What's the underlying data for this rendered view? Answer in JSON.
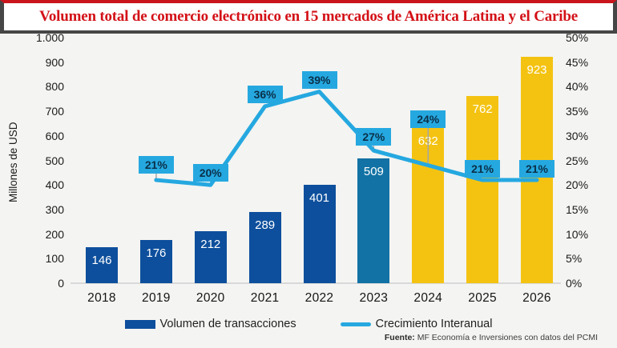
{
  "header": {
    "title": "Volumen total de comercio electrónico en 15 mercados de América Latina y el Caribe"
  },
  "chart_data": {
    "type": "bar",
    "title": "Volumen total de comercio electrónico en 15 mercados de América Latina y el Caribe",
    "categories": [
      "2018",
      "2019",
      "2020",
      "2021",
      "2022",
      "2023",
      "2024",
      "2025",
      "2026"
    ],
    "series": [
      {
        "name": "Volumen de transacciones",
        "type": "bar",
        "unit": "Millones de USD",
        "values": [
          146,
          176,
          212,
          289,
          401,
          509,
          632,
          762,
          923
        ],
        "bar_colors": [
          "#0d4f9c",
          "#0d4f9c",
          "#0d4f9c",
          "#0d4f9c",
          "#0d4f9c",
          "#1272a5",
          "#f4c312",
          "#f4c312",
          "#f4c312"
        ]
      },
      {
        "name": "Crecimiento Interanual",
        "type": "line",
        "unit": "%",
        "values": [
          null,
          21,
          20,
          36,
          39,
          27,
          24,
          21,
          21
        ],
        "point_labels": [
          "",
          "21%",
          "20%",
          "36%",
          "39%",
          "27%",
          "24%",
          "21%",
          "21%"
        ],
        "color": "#25a8e0",
        "label_box_bg": "#25a8e0",
        "label_box_text_color": "#0a3049"
      }
    ],
    "ylabel": "Millones de USD",
    "axis_left": {
      "min": 0,
      "max": 1000,
      "step": 100,
      "tick_labels": [
        "0",
        "100",
        "200",
        "300",
        "400",
        "500",
        "600",
        "700",
        "800",
        "900",
        "1.000"
      ]
    },
    "axis_right": {
      "min": 0,
      "max": 50,
      "step": 5,
      "tick_labels": [
        "0%",
        "5%",
        "10%",
        "15%",
        "20%",
        "25%",
        "30%",
        "35%",
        "40%",
        "45%",
        "50%"
      ]
    },
    "legend_position": "bottom",
    "grid": false
  },
  "legend": {
    "items": [
      {
        "label": "Volumen de transacciones",
        "swatch": "bar",
        "color": "#0d4f9c"
      },
      {
        "label": "Crecimiento Interanual",
        "swatch": "line",
        "color": "#25a8e0"
      }
    ]
  },
  "footer": {
    "source_label": "Fuente:",
    "source_text": "MF Economía e Inversiones con datos del PCMI"
  },
  "colors": {
    "background": "#f4f4f2",
    "title_text": "#d31117",
    "top_border": "#c9151b",
    "frame": "#464646",
    "axis_text": "#1a1a1a",
    "bar_label_text": "#ffffff",
    "baseline": "#d9d9d9",
    "leader_line": "#a6a6a6"
  }
}
